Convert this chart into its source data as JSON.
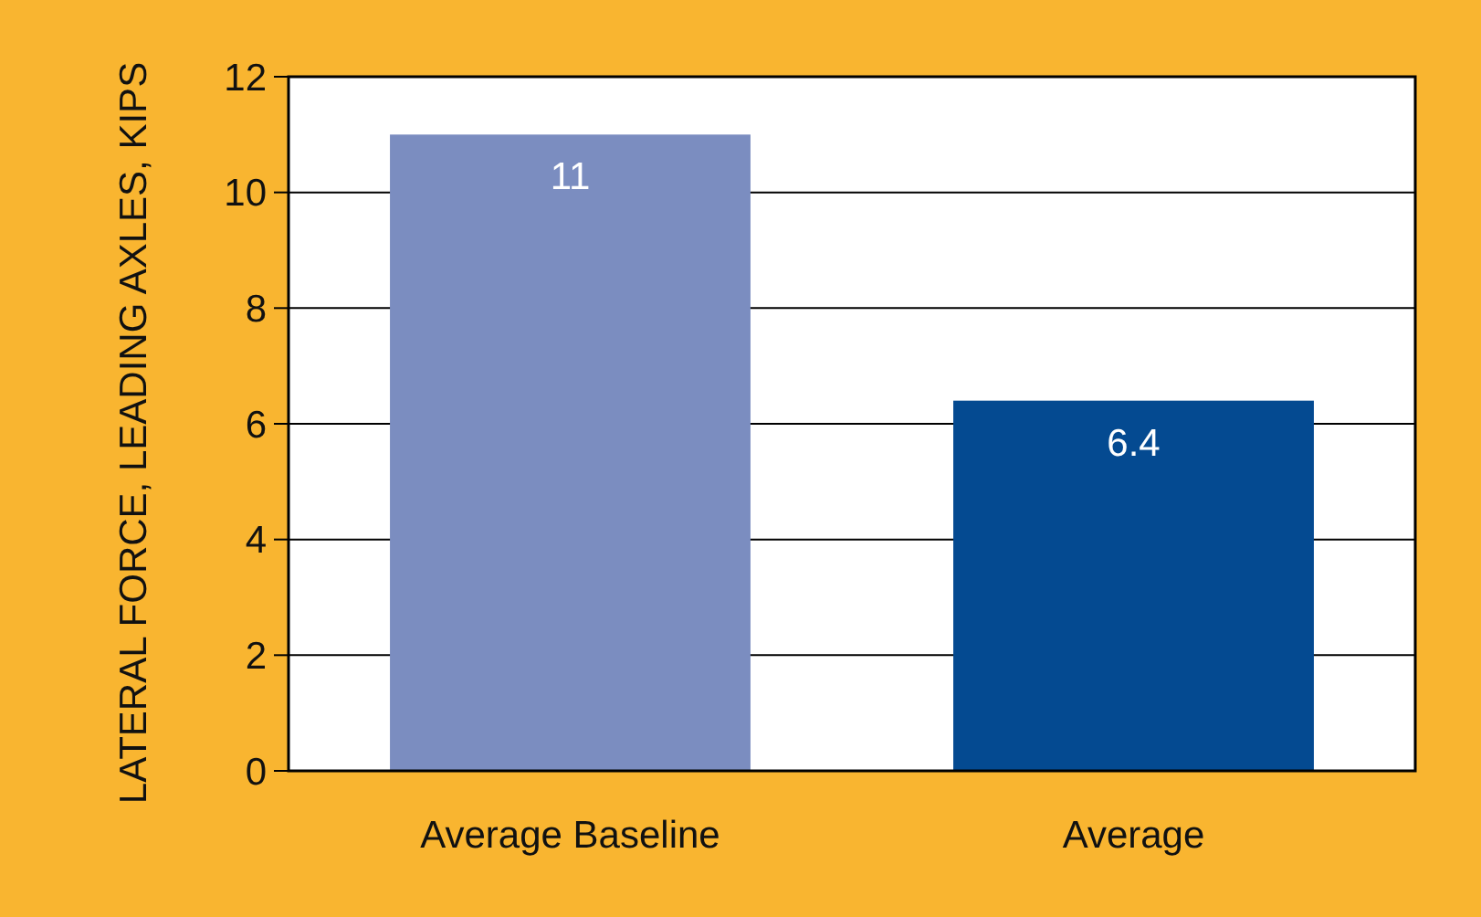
{
  "chart_data": {
    "type": "bar",
    "ylabel": "LATERAL FORCE, LEADING AXLES, KIPS",
    "categories": [
      "Average Baseline",
      "Average"
    ],
    "values": [
      11,
      6.4
    ],
    "colors": [
      "#7b8dc0",
      "#044a91"
    ],
    "ylim": [
      0,
      12
    ],
    "yticks": [
      0,
      2,
      4,
      6,
      8,
      10,
      12
    ],
    "grid": "y",
    "data_labels": true
  }
}
